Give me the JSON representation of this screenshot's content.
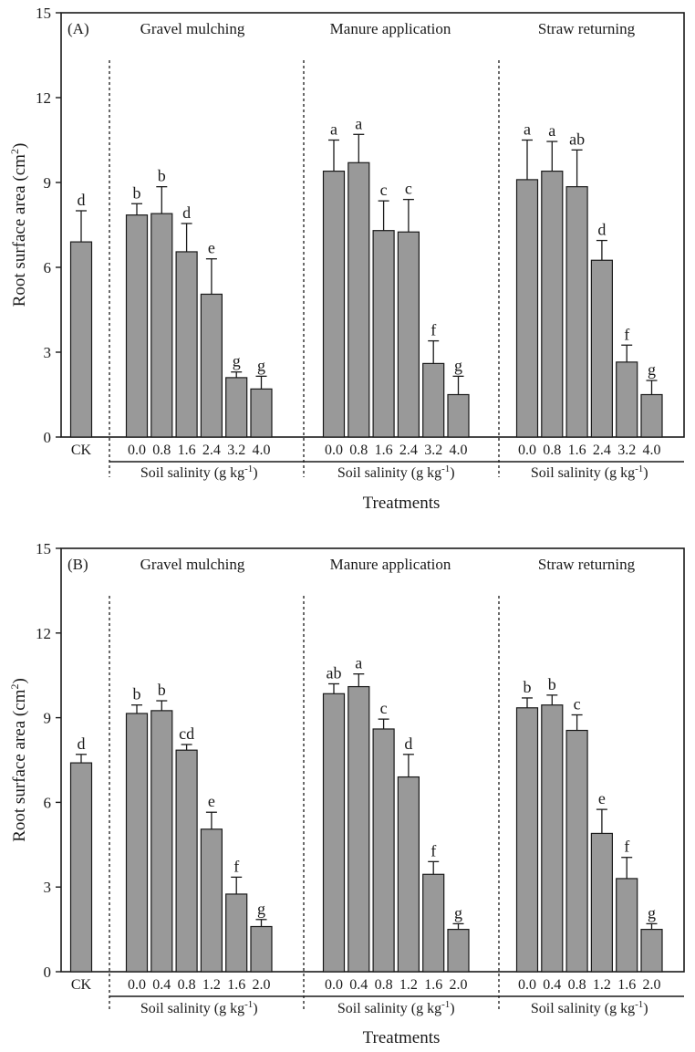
{
  "colors": {
    "bar_fill": "#999999",
    "line": "#1a1a1a",
    "text": "#1a1a1a"
  },
  "chart_data": [
    {
      "type": "bar",
      "panel_label": "(A)",
      "ylabel": "Root surface area",
      "ylabel_unit": "(cm",
      "ylabel_sup": "2",
      "ylabel_close": ")",
      "xlabel": "Treatments",
      "ylim": [
        0,
        15
      ],
      "yticks": [
        "0",
        "3",
        "6",
        "9",
        "12",
        "15"
      ],
      "control": {
        "label": "CK",
        "value": 6.9,
        "error": 1.1,
        "letter": "d"
      },
      "groups": [
        {
          "title": "Gravel mulching",
          "salinity_levels": [
            "0.0",
            "0.8",
            "1.6",
            "2.4",
            "3.2",
            "4.0"
          ],
          "values": [
            7.85,
            7.9,
            6.55,
            5.05,
            2.1,
            1.7
          ],
          "errors": [
            0.4,
            0.95,
            1.0,
            1.25,
            0.2,
            0.45
          ],
          "letters": [
            "b",
            "b",
            "d",
            "e",
            "g",
            "g"
          ],
          "axis_label": "Soil salinity (g kg",
          "axis_label_sup": "-1",
          "axis_label_close": ")"
        },
        {
          "title": "Manure application",
          "salinity_levels": [
            "0.0",
            "0.8",
            "1.6",
            "2.4",
            "3.2",
            "4.0"
          ],
          "values": [
            9.4,
            9.7,
            7.3,
            7.25,
            2.6,
            1.5
          ],
          "errors": [
            1.1,
            1.0,
            1.05,
            1.15,
            0.8,
            0.65
          ],
          "letters": [
            "a",
            "a",
            "c",
            "c",
            "f",
            "g"
          ],
          "axis_label": "Soil salinity (g kg",
          "axis_label_sup": "-1",
          "axis_label_close": ")"
        },
        {
          "title": "Straw returning",
          "salinity_levels": [
            "0.0",
            "0.8",
            "1.6",
            "2.4",
            "3.2",
            "4.0"
          ],
          "values": [
            9.1,
            9.4,
            8.85,
            6.25,
            2.65,
            1.5
          ],
          "errors": [
            1.4,
            1.05,
            1.3,
            0.7,
            0.6,
            0.5
          ],
          "letters": [
            "a",
            "a",
            "ab",
            "d",
            "f",
            "g"
          ],
          "axis_label": "Soil salinity (g kg",
          "axis_label_sup": "-1",
          "axis_label_close": ")"
        }
      ]
    },
    {
      "type": "bar",
      "panel_label": "(B)",
      "ylabel": "Root surface area",
      "ylabel_unit": "(cm",
      "ylabel_sup": "2",
      "ylabel_close": ")",
      "xlabel": "Treatments",
      "ylim": [
        0,
        15
      ],
      "yticks": [
        "0",
        "3",
        "6",
        "9",
        "12",
        "15"
      ],
      "control": {
        "label": "CK",
        "value": 7.4,
        "error": 0.3,
        "letter": "d"
      },
      "groups": [
        {
          "title": "Gravel mulching",
          "salinity_levels": [
            "0.0",
            "0.4",
            "0.8",
            "1.2",
            "1.6",
            "2.0"
          ],
          "values": [
            9.15,
            9.25,
            7.85,
            5.05,
            2.75,
            1.6
          ],
          "errors": [
            0.3,
            0.35,
            0.2,
            0.6,
            0.6,
            0.25
          ],
          "letters": [
            "b",
            "b",
            "cd",
            "e",
            "f",
            "g"
          ],
          "axis_label": "Soil salinity (g kg",
          "axis_label_sup": "-1",
          "axis_label_close": ")"
        },
        {
          "title": "Manure application",
          "salinity_levels": [
            "0.0",
            "0.4",
            "0.8",
            "1.2",
            "1.6",
            "2.0"
          ],
          "values": [
            9.85,
            10.1,
            8.6,
            6.9,
            3.45,
            1.5
          ],
          "errors": [
            0.35,
            0.45,
            0.35,
            0.8,
            0.45,
            0.2
          ],
          "letters": [
            "ab",
            "a",
            "c",
            "d",
            "f",
            "g"
          ],
          "axis_label": "Soil salinity (g kg",
          "axis_label_sup": "-1",
          "axis_label_close": ")"
        },
        {
          "title": "Straw returning",
          "salinity_levels": [
            "0.0",
            "0.4",
            "0.8",
            "1.2",
            "1.6",
            "2.0"
          ],
          "values": [
            9.35,
            9.45,
            8.55,
            4.9,
            3.3,
            1.5
          ],
          "errors": [
            0.35,
            0.35,
            0.55,
            0.85,
            0.75,
            0.2
          ],
          "letters": [
            "b",
            "b",
            "c",
            "e",
            "f",
            "g"
          ],
          "axis_label": "Soil salinity (g kg",
          "axis_label_sup": "-1",
          "axis_label_close": ")"
        }
      ]
    }
  ]
}
